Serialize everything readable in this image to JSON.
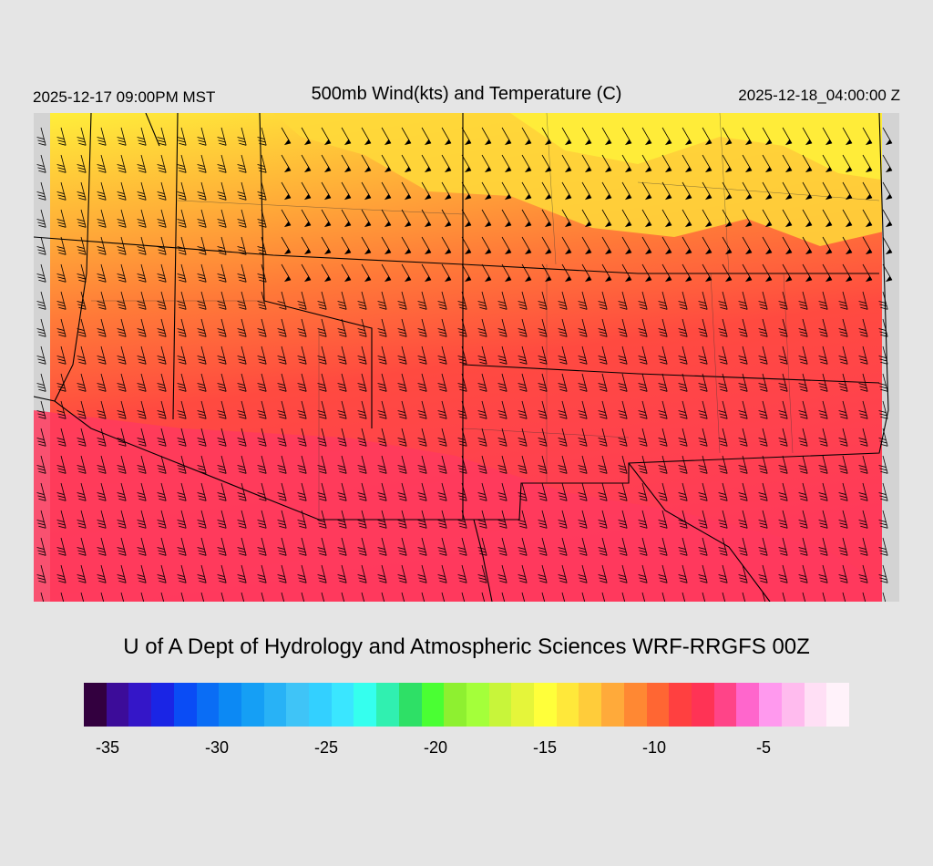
{
  "header": {
    "local_time": "2025-12-17 09:00PM MST",
    "title": "500mb Wind(kts) and Temperature (C)",
    "valid_time": "2025-12-18_04:00:00 Z"
  },
  "footer": {
    "credit": "U of A Dept of Hydrology and Atmospheric Sciences WRF-RRGFS 00Z"
  },
  "colorbar": {
    "colors": [
      "#33003f",
      "#3c0c99",
      "#3416c8",
      "#1a25e5",
      "#0a4cf5",
      "#0a6df5",
      "#0c89f4",
      "#159ff5",
      "#28b2f6",
      "#3fc4f7",
      "#33d0ff",
      "#3ae6ff",
      "#35ffee",
      "#30f0b0",
      "#2ee066",
      "#4aff33",
      "#8ef030",
      "#a4ff3a",
      "#c8f53a",
      "#e5f53a",
      "#ffff3a",
      "#ffe83a",
      "#ffcc3a",
      "#ffaa3a",
      "#ff8833",
      "#ff6633",
      "#ff4040",
      "#ff3355",
      "#ff4488",
      "#ff66cc",
      "#ff99ee",
      "#ffbbee",
      "#ffdff5",
      "#fff2fa"
    ],
    "tick_labels": [
      "-35",
      "-30",
      "-25",
      "-20",
      "-15",
      "-10",
      "-5"
    ],
    "tick_values": [
      -35,
      -30,
      -25,
      -20,
      -15,
      -10,
      -5
    ],
    "min": -36,
    "max": -1
  },
  "legend_colors": {
    "yellow": "#ffee3a",
    "orange": "#ff9a35",
    "red": "#ff4a40",
    "pink": "#ff3a5a",
    "outside": "#d3d3d3"
  }
}
